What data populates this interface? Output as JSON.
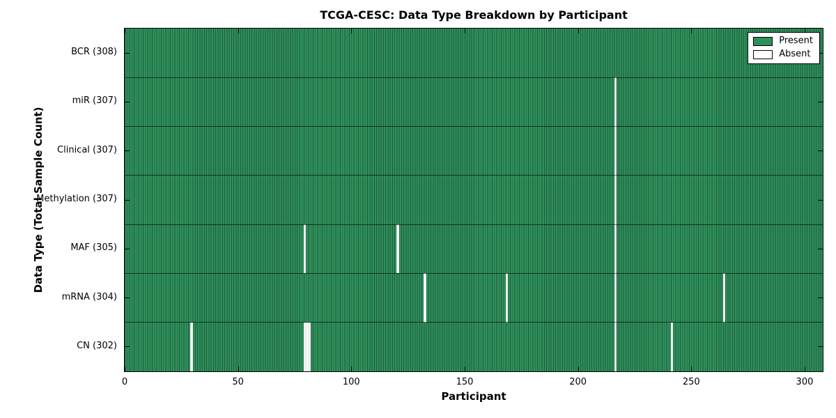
{
  "chart_data": {
    "type": "heatmap",
    "title": "TCGA-CESC: Data Type Breakdown by Participant",
    "xlabel": "Participant",
    "ylabel": "Data Type (Total Sample Count)",
    "n_participants": 308,
    "xlim": [
      0,
      308
    ],
    "x_ticks": [
      0,
      50,
      100,
      150,
      200,
      250,
      300
    ],
    "grid": false,
    "legend_position": "upper right",
    "legend": [
      {
        "label": "Present",
        "color": "#2f8f5b"
      },
      {
        "label": "Absent",
        "color": "#ffffff"
      }
    ],
    "rows": [
      {
        "label": "BCR (308)",
        "data_type": "BCR",
        "total": 308,
        "absent_participants": []
      },
      {
        "label": "miR (307)",
        "data_type": "miR",
        "total": 307,
        "absent_participants": [
          216
        ]
      },
      {
        "label": "Clinical (307)",
        "data_type": "Clinical",
        "total": 307,
        "absent_participants": [
          216
        ]
      },
      {
        "label": "Methylation (307)",
        "data_type": "Methylation",
        "total": 307,
        "absent_participants": [
          216
        ]
      },
      {
        "label": "MAF (305)",
        "data_type": "MAF",
        "total": 305,
        "absent_participants": [
          79,
          120,
          216
        ]
      },
      {
        "label": "mRNA (304)",
        "data_type": "mRNA",
        "total": 304,
        "absent_participants": [
          132,
          168,
          216,
          264
        ]
      },
      {
        "label": "CN (302)",
        "data_type": "CN",
        "total": 302,
        "absent_participants": [
          29,
          79,
          80,
          81,
          216,
          241
        ]
      }
    ],
    "colors": {
      "present_fill": "#2f8f5b",
      "present_edge": "#1d5e3b",
      "absent_fill": "#ffffff",
      "axis": "#000000"
    }
  }
}
